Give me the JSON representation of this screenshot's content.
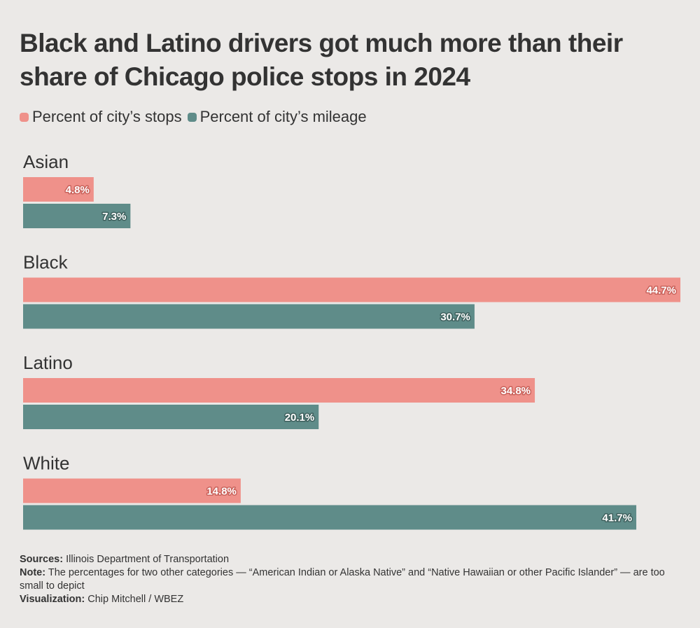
{
  "title": "Black and Latino drivers got much more than their share of Chicago police stops in 2024",
  "colors": {
    "stops": "#ef918a",
    "mileage": "#5f8c89",
    "background": "#ebe9e7"
  },
  "chart_data": {
    "type": "bar",
    "orientation": "horizontal",
    "title": "Black and Latino drivers got much more than their share of Chicago police stops in 2024",
    "categories": [
      "Asian",
      "Black",
      "Latino",
      "White"
    ],
    "series": [
      {
        "name": "Percent of city’s stops",
        "values": [
          4.8,
          44.7,
          34.8,
          14.8
        ],
        "labels": [
          "4.8%",
          "44.7%",
          "34.8%",
          "14.8%"
        ]
      },
      {
        "name": "Percent of city’s mileage",
        "values": [
          7.3,
          30.7,
          20.1,
          41.7
        ],
        "labels": [
          "7.3%",
          "30.7%",
          "20.1%",
          "41.7%"
        ]
      }
    ],
    "xlim": [
      0,
      44.7
    ],
    "xlabel": "",
    "ylabel": "",
    "grid": false,
    "legend": "top-left"
  },
  "footer": {
    "sources_label": "Sources:",
    "sources_text": "Illinois Department of Transportation",
    "note_label": "Note:",
    "note_text": "The percentages for two other categories — “American Indian or Alaska Native” and “Native Hawaiian or other Pacific Islander” — are too small to depict",
    "viz_label": "Visualization:",
    "viz_text": "Chip Mitchell / WBEZ"
  }
}
